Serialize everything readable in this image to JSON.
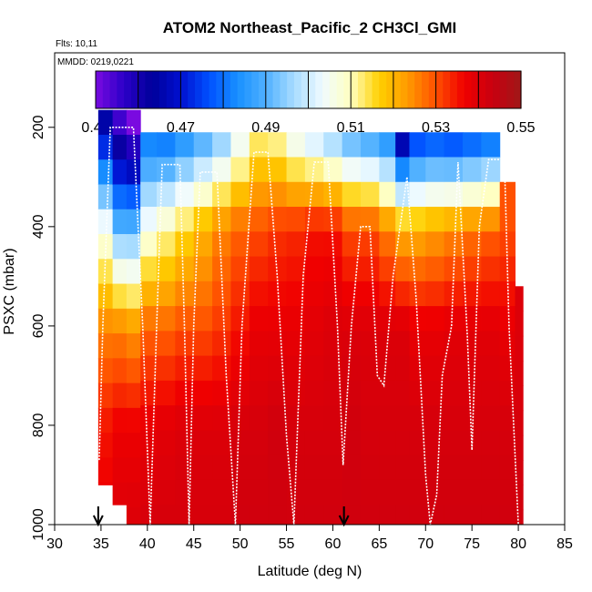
{
  "chart_data": {
    "type": "heatmap",
    "title": "ATOM2 Northeast_Pacific_2 CH3Cl_GMI",
    "flights_text": "Flts: 10,11",
    "dates_text": "MMDD: 0219,0221",
    "xlabel": "Latitude (deg N)",
    "ylabel": "PSXC (mbar)",
    "xlim": [
      30,
      85
    ],
    "ylim": [
      1000,
      50
    ],
    "x_ticks": [
      "30",
      "35",
      "40",
      "45",
      "50",
      "55",
      "60",
      "65",
      "70",
      "75",
      "80",
      "85"
    ],
    "y_ticks": [
      "200",
      "400",
      "600",
      "800",
      "1000"
    ],
    "colorbar": {
      "min": 0.45,
      "max": 0.55,
      "tick_labels": [
        "0.45",
        "0.47",
        "0.49",
        "0.51",
        "0.53",
        "0.55"
      ],
      "colors": [
        "#7a0ae0",
        "#2b00c8",
        "#00009a",
        "#0010d0",
        "#0050ff",
        "#1890ff",
        "#50b0ff",
        "#a8dcff",
        "#f0fbff",
        "#ffffc0",
        "#ffd000",
        "#ff9a00",
        "#ff5000",
        "#f00000",
        "#c80010",
        "#a01818"
      ]
    },
    "arrows_lat": [
      34.7,
      61.2
    ],
    "curtain_columns": [
      {
        "lat": 35.5,
        "top": 165,
        "bottom": 920,
        "values": [
          0.465,
          0.505,
          0.525,
          0.535,
          0.538
        ]
      },
      {
        "lat": 37.0,
        "top": 165,
        "bottom": 960,
        "values": [
          0.455,
          0.49,
          0.525,
          0.537,
          0.54
        ]
      },
      {
        "lat": 38.5,
        "top": 165,
        "bottom": 1000,
        "values": [
          0.45,
          0.49,
          0.523,
          0.537,
          0.54
        ]
      },
      {
        "lat": 40.0,
        "top": 210,
        "bottom": 1000,
        "values": [
          0.478,
          0.505,
          0.528,
          0.538,
          0.541
        ]
      },
      {
        "lat": 42.0,
        "top": 210,
        "bottom": 1000,
        "values": [
          0.476,
          0.51,
          0.528,
          0.539,
          0.541
        ]
      },
      {
        "lat": 44.0,
        "top": 210,
        "bottom": 1000,
        "values": [
          0.48,
          0.515,
          0.53,
          0.54,
          0.541
        ]
      },
      {
        "lat": 46.0,
        "top": 210,
        "bottom": 1000,
        "values": [
          0.485,
          0.52,
          0.53,
          0.54,
          0.541
        ]
      },
      {
        "lat": 48.0,
        "top": 210,
        "bottom": 1000,
        "values": [
          0.49,
          0.525,
          0.532,
          0.54,
          0.541
        ]
      },
      {
        "lat": 50.0,
        "top": 210,
        "bottom": 1000,
        "values": [
          0.5,
          0.528,
          0.535,
          0.541,
          0.542
        ]
      },
      {
        "lat": 52.0,
        "top": 210,
        "bottom": 1000,
        "values": [
          0.51,
          0.53,
          0.538,
          0.541,
          0.542
        ]
      },
      {
        "lat": 54.0,
        "top": 210,
        "bottom": 1000,
        "values": [
          0.508,
          0.532,
          0.538,
          0.542,
          0.542
        ]
      },
      {
        "lat": 56.0,
        "top": 210,
        "bottom": 1000,
        "values": [
          0.5,
          0.533,
          0.538,
          0.541,
          0.542
        ]
      },
      {
        "lat": 58.0,
        "top": 210,
        "bottom": 1000,
        "values": [
          0.495,
          0.535,
          0.539,
          0.541,
          0.542
        ]
      },
      {
        "lat": 60.0,
        "top": 210,
        "bottom": 1000,
        "values": [
          0.49,
          0.535,
          0.54,
          0.541,
          0.542
        ]
      },
      {
        "lat": 62.0,
        "top": 210,
        "bottom": 1000,
        "values": [
          0.485,
          0.53,
          0.54,
          0.542,
          0.542
        ]
      },
      {
        "lat": 64.0,
        "top": 210,
        "bottom": 1000,
        "values": [
          0.482,
          0.53,
          0.54,
          0.541,
          0.542
        ]
      },
      {
        "lat": 66.0,
        "top": 210,
        "bottom": 1000,
        "values": [
          0.478,
          0.525,
          0.54,
          0.541,
          0.542
        ]
      },
      {
        "lat": 67.5,
        "top": 210,
        "bottom": 1000,
        "values": [
          0.455,
          0.52,
          0.54,
          0.541,
          0.542
        ]
      },
      {
        "lat": 69.0,
        "top": 210,
        "bottom": 1000,
        "values": [
          0.468,
          0.52,
          0.538,
          0.541,
          0.542
        ]
      },
      {
        "lat": 71.0,
        "top": 210,
        "bottom": 1000,
        "values": [
          0.47,
          0.522,
          0.538,
          0.541,
          0.542
        ]
      },
      {
        "lat": 73.0,
        "top": 210,
        "bottom": 1000,
        "values": [
          0.468,
          0.524,
          0.539,
          0.541,
          0.542
        ]
      },
      {
        "lat": 75.0,
        "top": 210,
        "bottom": 1000,
        "values": [
          0.47,
          0.526,
          0.539,
          0.541,
          0.542
        ]
      },
      {
        "lat": 77.0,
        "top": 210,
        "bottom": 1000,
        "values": [
          0.472,
          0.528,
          0.539,
          0.541,
          0.542
        ]
      },
      {
        "lat": 79.0,
        "top": 310,
        "bottom": 1000,
        "values": [
          0.53,
          0.53,
          0.538,
          0.541,
          0.542
        ]
      },
      {
        "lat": 80.3,
        "top": 520,
        "bottom": 1000,
        "values": [
          0.54,
          0.54,
          0.54,
          0.541,
          0.542
        ]
      }
    ],
    "flight_track": [
      [
        34.8,
        870
      ],
      [
        35.2,
        600
      ],
      [
        35.6,
        400
      ],
      [
        36.0,
        200
      ],
      [
        38.5,
        200
      ],
      [
        39.5,
        600
      ],
      [
        40.3,
        1000
      ],
      [
        41.0,
        600
      ],
      [
        41.6,
        275
      ],
      [
        43.5,
        275
      ],
      [
        44.0,
        600
      ],
      [
        44.5,
        1000
      ],
      [
        45.0,
        600
      ],
      [
        45.7,
        290
      ],
      [
        47.5,
        290
      ],
      [
        48.5,
        700
      ],
      [
        49.5,
        1000
      ],
      [
        50.2,
        600
      ],
      [
        51.5,
        250
      ],
      [
        53.0,
        250
      ],
      [
        54.0,
        500
      ],
      [
        55.0,
        820
      ],
      [
        55.8,
        1000
      ],
      [
        56.8,
        500
      ],
      [
        58.0,
        270
      ],
      [
        59.5,
        270
      ],
      [
        60.5,
        600
      ],
      [
        61.1,
        880
      ],
      [
        62.0,
        600
      ],
      [
        63.0,
        400
      ],
      [
        64.0,
        400
      ],
      [
        64.8,
        700
      ],
      [
        65.5,
        720
      ],
      [
        66.5,
        500
      ],
      [
        68.0,
        300
      ],
      [
        69.0,
        550
      ],
      [
        70.0,
        900
      ],
      [
        70.5,
        1000
      ],
      [
        71.2,
        940
      ],
      [
        71.8,
        700
      ],
      [
        72.8,
        600
      ],
      [
        73.5,
        270
      ],
      [
        74.5,
        620
      ],
      [
        75.0,
        850
      ],
      [
        75.8,
        400
      ],
      [
        76.8,
        265
      ],
      [
        78.5,
        265
      ],
      [
        79.0,
        600
      ],
      [
        80.0,
        1000
      ]
    ]
  }
}
